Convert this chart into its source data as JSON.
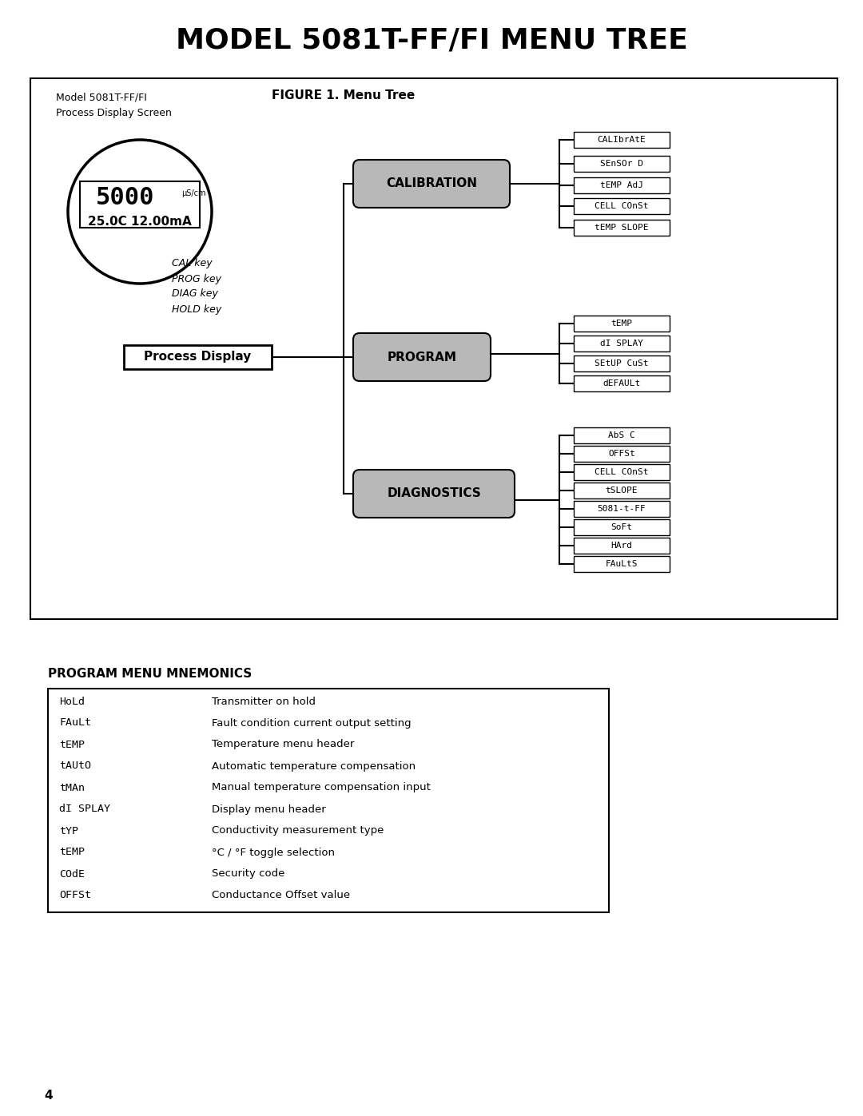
{
  "title": "MODEL 5081T-FF/FI MENU TREE",
  "figure_label": "FIGURE 1. Menu Tree",
  "model_label": "Model 5081T-FF/FI",
  "screen_label": "Process Display Screen",
  "display_value_top": "5000",
  "display_unit": "μS/cm",
  "display_value_bottom": "25.0C 12.00mA",
  "keys": [
    "CAL key",
    "PROG key",
    "DIAG key",
    "HOLD key"
  ],
  "process_display_label": "Process Display",
  "calibration_label": "CALIBRATION",
  "program_label": "PROGRAM",
  "diagnostics_label": "DIAGNOSTICS",
  "calibration_items": [
    "CALIbrAtE",
    "SEnSOr D",
    "tEMP AdJ",
    "CELL COnSt",
    "tEMP SLOPE"
  ],
  "program_items": [
    "tEMP",
    "dI SPLAY",
    "SEtUP CuSt",
    "dEFAULt"
  ],
  "diagnostics_items": [
    "AbS C",
    "OFFSt",
    "CELL COnSt",
    "tSLOPE",
    "5081-t-FF",
    "SoFt",
    "HArd",
    "FAuLtS"
  ],
  "mnemonics_title": "PROGRAM MENU MNEMONICS",
  "mnemonics": [
    [
      "HoLd",
      "Transmitter on hold"
    ],
    [
      "FAuLt",
      "Fault condition current output setting"
    ],
    [
      "tEMP",
      "Temperature menu header"
    ],
    [
      "tAUtO",
      "Automatic temperature compensation"
    ],
    [
      "tMAn",
      "Manual temperature compensation input"
    ],
    [
      "dI SPLAY",
      "Display menu header"
    ],
    [
      "tYP",
      "Conductivity measurement type"
    ],
    [
      "tEMP",
      "°C / °F toggle selection"
    ],
    [
      "COdE",
      "Security code"
    ],
    [
      "OFFSt",
      "Conductance Offset value"
    ]
  ],
  "page_number": "4",
  "bg_color": "#ffffff",
  "rounded_box_bg": "#b8b8b8"
}
